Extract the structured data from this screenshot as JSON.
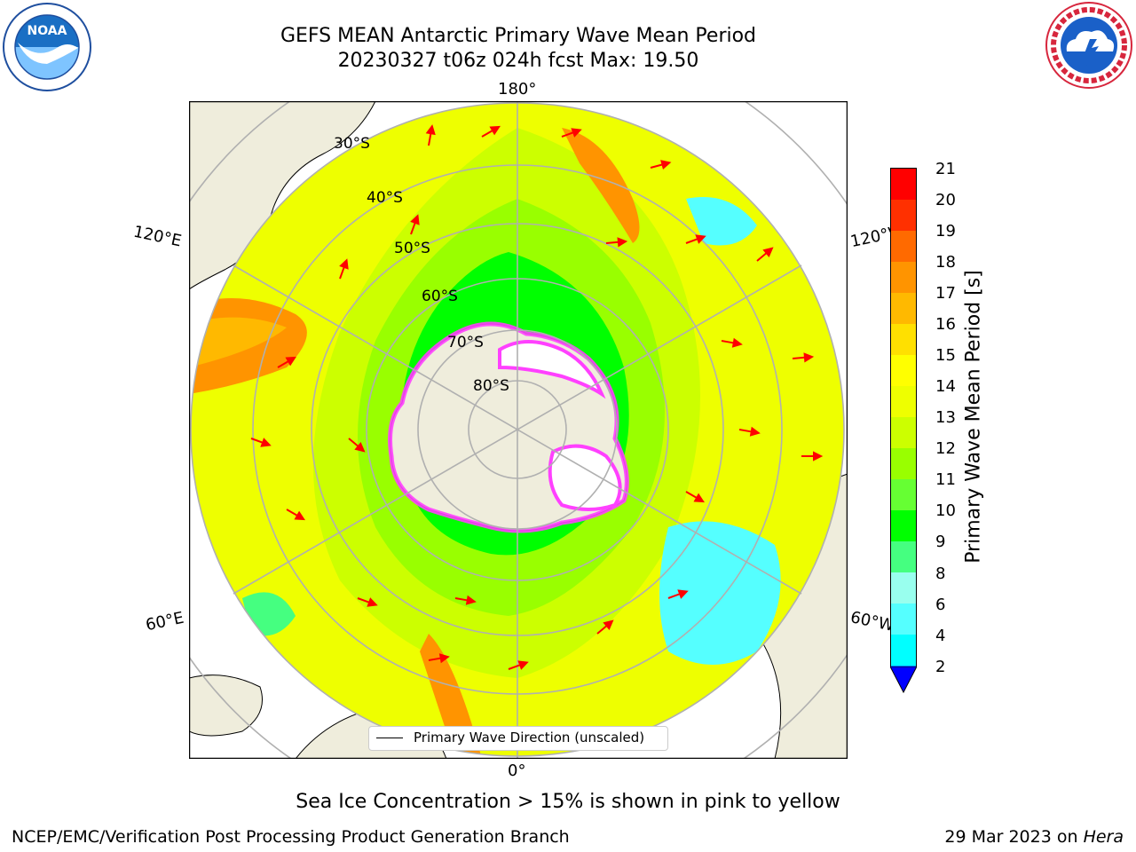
{
  "header": {
    "title_line1": "GEFS MEAN Antarctic Primary Wave Mean Period",
    "title_line2": "20230327 t06z 024h fcst   Max: 19.50"
  },
  "logos": {
    "left": {
      "icon": "noaa-logo",
      "text": "NOAA",
      "ring_text": "NATIONAL OCEANIC AND ATMOSPHERIC ADMINISTRATION · U.S. DEPARTMENT OF COMMERCE"
    },
    "right": {
      "icon": "national-weather-service-logo",
      "ring_text": "NATIONAL WEATHER SERVICE"
    }
  },
  "map": {
    "projection": "south-polar-stereographic",
    "longitude_labels": {
      "top": "180°",
      "bottom": "0°",
      "left_upper": "120°E",
      "left_lower": "60°E",
      "right_upper": "120°W",
      "right_lower": "60°W"
    },
    "latitude_labels": [
      "30°S",
      "40°S",
      "50°S",
      "60°S",
      "70°S",
      "80°S"
    ],
    "legend_label": "Primary Wave Direction (unscaled)",
    "arrow_color": "#ff0000",
    "land_color": "#efeddc",
    "sea_ice_color": "#ff40ff"
  },
  "colorbar": {
    "label": "Primary Wave Mean Period [s]",
    "ticks": [
      "21",
      "20",
      "19",
      "18",
      "17",
      "16",
      "15",
      "14",
      "13",
      "12",
      "11",
      "10",
      "9",
      "8",
      "6",
      "4",
      "2"
    ],
    "colors": [
      "#ff0000",
      "#ff3000",
      "#ff6a00",
      "#ff9400",
      "#ffb900",
      "#ffe000",
      "#ffff00",
      "#eeff00",
      "#ccff00",
      "#99ff00",
      "#66ff33",
      "#00ff00",
      "#45ff80",
      "#99ffee",
      "#55ffff",
      "#00ffff",
      "#00d0ff",
      "#0080ff"
    ],
    "extend_color": "#0000ff"
  },
  "footer": {
    "note": "Sea Ice Concentration > 15% is shown in pink to yellow",
    "credit": "NCEP/EMC/Verification Post Processing Product Generation Branch",
    "date": "29 Mar 2023 on ",
    "machine": "Hera"
  }
}
